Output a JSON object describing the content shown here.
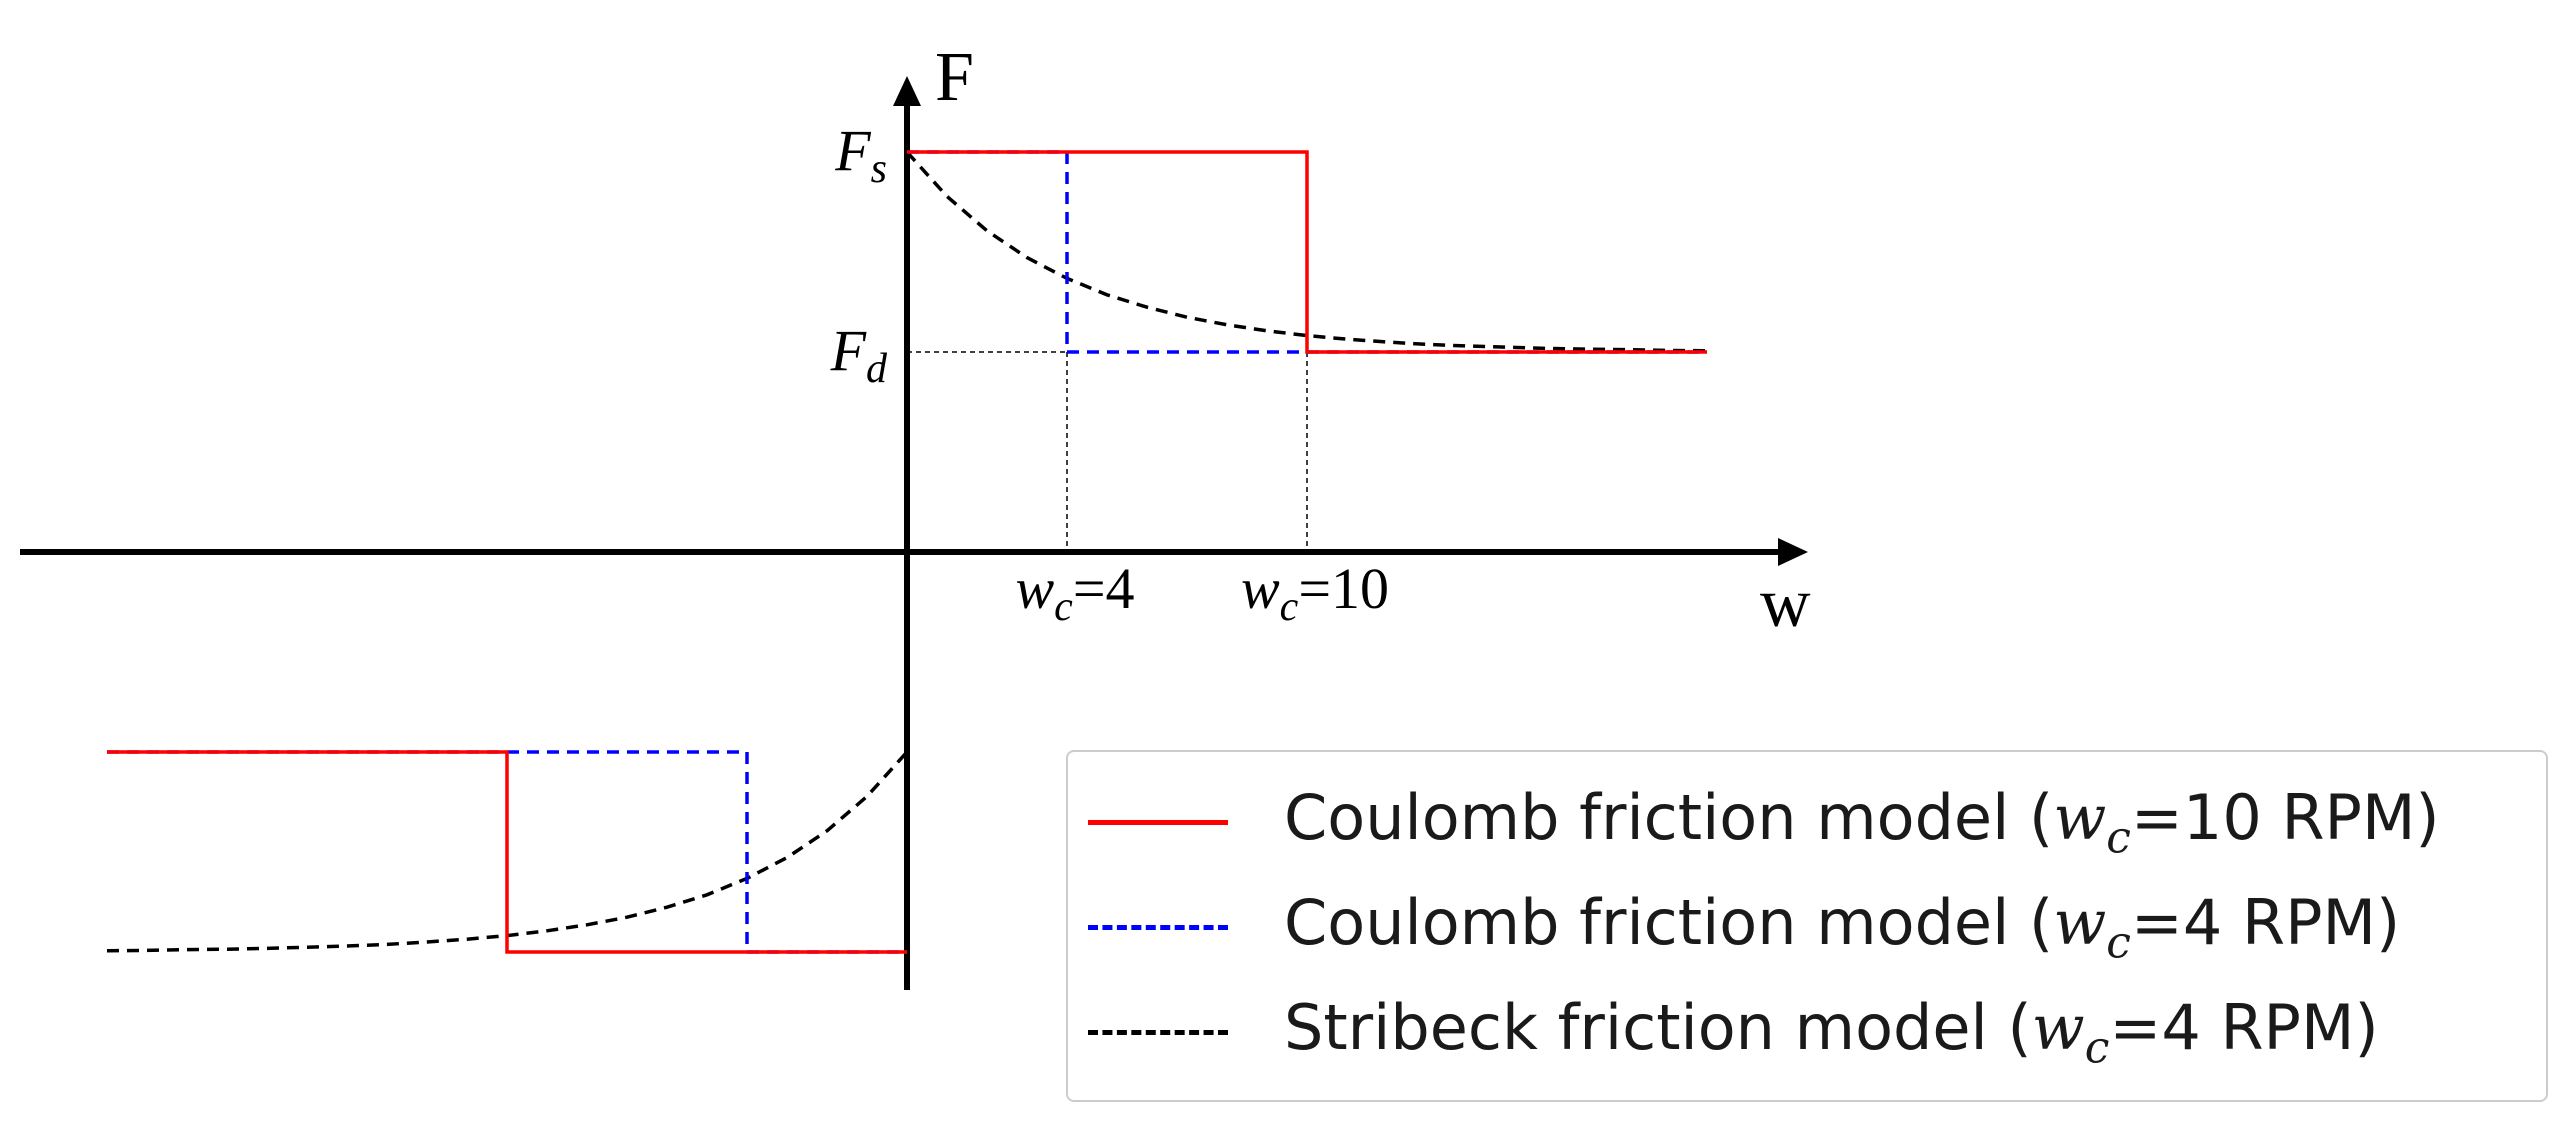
{
  "chart_data": {
    "type": "line",
    "title": "",
    "xlabel": "w",
    "ylabel": "F",
    "xlim": [
      -11.1,
      11.3
    ],
    "ylim": [
      -1.1,
      1.2
    ],
    "y_ticks": [
      {
        "label_var": "F",
        "label_sub": "s",
        "value": 1.0
      },
      {
        "label_var": "F",
        "label_sub": "d",
        "value": 0.5
      }
    ],
    "x_ticks": [
      {
        "label_var": "w",
        "label_sub": "c",
        "label_rest": "=4",
        "value": 2
      },
      {
        "label_var": "w",
        "label_sub": "c",
        "label_rest": "=10",
        "value": 5
      }
    ],
    "series": [
      {
        "name_prefix": "Coulomb friction model (",
        "name_var": "w",
        "name_sub": "c",
        "name_suffix": "=10 RPM)",
        "color": "#ff0000",
        "style": "solid",
        "x": [
          0,
          5,
          5,
          10
        ],
        "y": [
          1.0,
          1.0,
          0.5,
          0.5
        ],
        "x_neg": [
          -10,
          -5,
          -5,
          0
        ],
        "y_neg": [
          -0.5,
          -0.5,
          -1.0,
          -1.0
        ]
      },
      {
        "name_prefix": "Coulomb friction model (",
        "name_var": "w",
        "name_sub": "c",
        "name_suffix": "=4 RPM)",
        "color": "#0000ff",
        "style": "dashed",
        "x": [
          0,
          2,
          2,
          10
        ],
        "y": [
          1.0,
          1.0,
          0.5,
          0.5
        ],
        "x_neg": [
          -10,
          -2,
          -2,
          0
        ],
        "y_neg": [
          -0.5,
          -0.5,
          -1.0,
          -1.0
        ]
      },
      {
        "name_prefix": "Stribeck friction model (",
        "name_var": "w",
        "name_sub": "c",
        "name_suffix": "=4 RPM)",
        "color": "#000000",
        "style": "dashed",
        "formula": "F = Fd + (Fs - Fd) * exp(-|w|/2)",
        "x": [
          0,
          0.5,
          1,
          1.5,
          2,
          2.5,
          3,
          3.5,
          4,
          4.5,
          5,
          5.5,
          6,
          6.5,
          7,
          7.5,
          8,
          8.5,
          9,
          9.5,
          10
        ],
        "y": [
          1.0,
          0.889,
          0.803,
          0.736,
          0.684,
          0.643,
          0.612,
          0.587,
          0.568,
          0.553,
          0.541,
          0.532,
          0.525,
          0.519,
          0.515,
          0.512,
          0.509,
          0.507,
          0.506,
          0.504,
          0.503
        ]
      }
    ],
    "guides": [
      {
        "x": 2,
        "y": 0.5
      },
      {
        "x": 5,
        "y": 0.5
      }
    ],
    "legend": "bottom-right"
  }
}
